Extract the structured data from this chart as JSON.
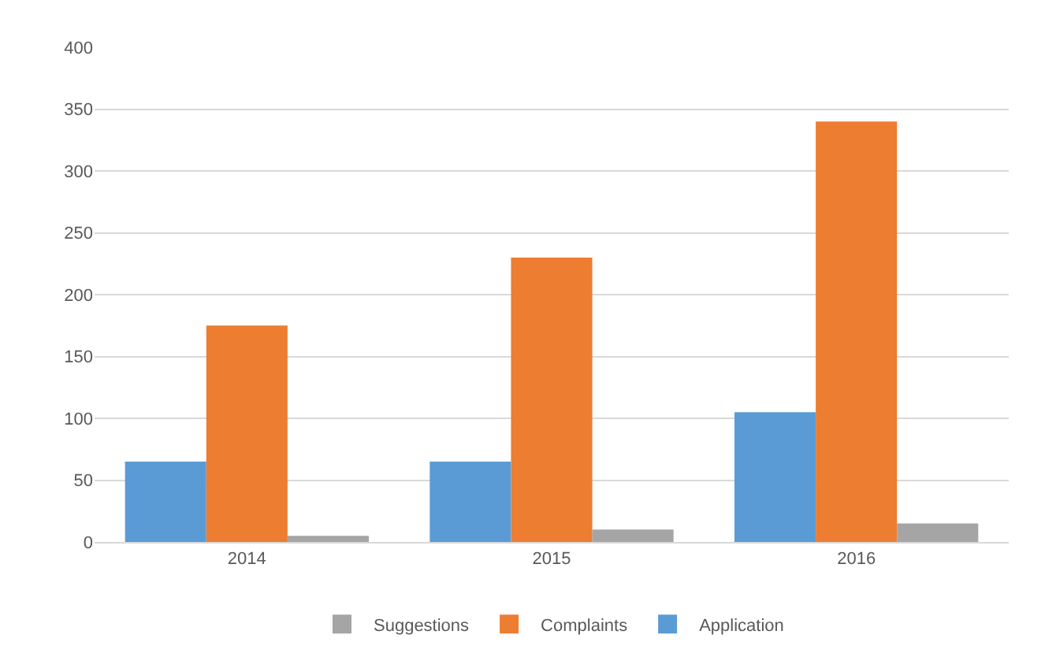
{
  "chart_data": {
    "type": "bar",
    "categories": [
      "2014",
      "2015",
      "2016"
    ],
    "series": [
      {
        "name": "Application",
        "color": "#5b9bd5",
        "values": [
          65,
          65,
          105
        ]
      },
      {
        "name": "Complaints",
        "color": "#ed7d31",
        "values": [
          175,
          230,
          340
        ]
      },
      {
        "name": "Suggestions",
        "color": "#a5a5a5",
        "values": [
          5,
          10,
          15
        ]
      }
    ],
    "ylim": [
      0,
      400
    ],
    "yticks": [
      0,
      50,
      100,
      150,
      200,
      250,
      300,
      350,
      400
    ],
    "grid": "y",
    "legend": "bottom"
  }
}
